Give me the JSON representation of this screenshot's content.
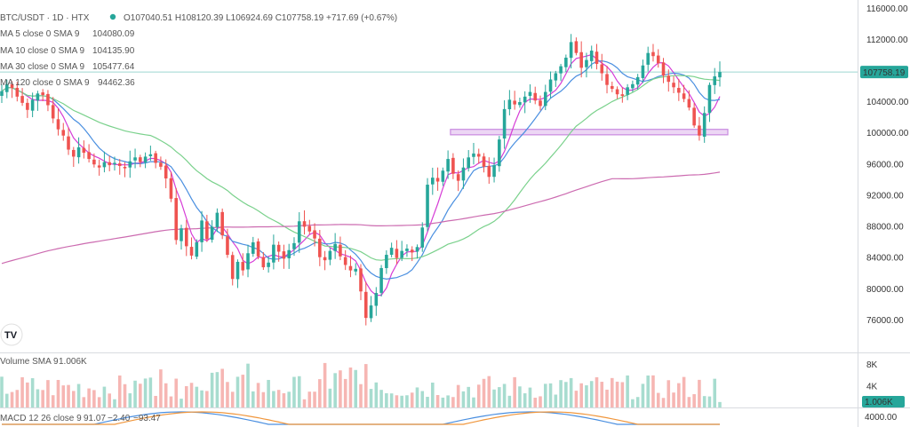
{
  "colors": {
    "up": "#26a69a",
    "down": "#ef5350",
    "up_vol": "#a7dccf",
    "down_vol": "#f6b6b3",
    "ma5": "#d63cd6",
    "ma10": "#4a8fe0",
    "ma30": "#7ad18c",
    "ma120": "#cc6bb0",
    "zone": "#c98ae0",
    "macd_line": "#4a8fe0",
    "signal_line": "#f0963c",
    "price_tag_bg": "#26a69a"
  },
  "header": {
    "symbol": "BTC/USDT · 1D · HTX",
    "ohlc": "O107040.51 H108120.39 L106924.69 C107758.19 +717.69 (+0.67%)",
    "ma_rows": [
      {
        "label": "MA 5 close 0 SMA 9",
        "value": "104080.09",
        "color_key": "ma5"
      },
      {
        "label": "MA 10 close 0 SMA 9",
        "value": "104135.90",
        "color_key": "ma10"
      },
      {
        "label": "MA 30 close 0 SMA 9",
        "value": "105477.64",
        "color_key": "ma30"
      },
      {
        "label": "MA 120 close 0 SMA 9",
        "value": "94462.36",
        "color_key": "ma120"
      }
    ],
    "volume_label": "Volume SMA 9",
    "volume_value": "1.006K",
    "macd_label": "MACD 12 26 close 9",
    "macd_values": [
      "91.07",
      "−2.40",
      "−93.47"
    ],
    "logo_text": "TV"
  },
  "chart_data": {
    "type": "candlestick",
    "title": "BTC/USDT · 1D · HTX",
    "ylim": [
      72000,
      117000
    ],
    "y_ticks": [
      {
        "value": 116000,
        "label": "116000.00"
      },
      {
        "value": 112000,
        "label": "112000.00"
      },
      {
        "value": 108000,
        "label": "108000.00"
      },
      {
        "value": 104000,
        "label": "104000.00"
      },
      {
        "value": 100000,
        "label": "100000.00"
      },
      {
        "value": 96000,
        "label": "96000.00"
      },
      {
        "value": 92000,
        "label": "92000.00"
      },
      {
        "value": 88000,
        "label": "88000.00"
      },
      {
        "value": 84000,
        "label": "84000.00"
      },
      {
        "value": 80000,
        "label": "80000.00"
      },
      {
        "value": 76000,
        "label": "76000.00"
      }
    ],
    "last_price": {
      "value": 107758.19,
      "label": "107758.19"
    },
    "support_zone": {
      "low": 99700,
      "high": 100400,
      "from_index": 88,
      "to_index": 140
    },
    "volume": {
      "ylim": [
        0,
        10000
      ],
      "ticks": [
        {
          "value": 8000,
          "label": "8K"
        },
        {
          "value": 4000,
          "label": "4K"
        }
      ],
      "last": {
        "value": 1006,
        "label": "1.006K"
      }
    },
    "macd_axis": {
      "label": "4000.00"
    },
    "closes": [
      105300,
      106200,
      105700,
      104600,
      103800,
      102900,
      104200,
      105000,
      104800,
      103500,
      101800,
      100400,
      99600,
      97800,
      96900,
      98100,
      97400,
      96600,
      95900,
      95500,
      96200,
      95800,
      96100,
      95700,
      95400,
      96300,
      96800,
      96200,
      96900,
      97200,
      96100,
      95600,
      94100,
      91500,
      86200,
      87700,
      85400,
      84200,
      85900,
      88700,
      86300,
      87900,
      89700,
      86800,
      84300,
      81200,
      83400,
      82300,
      84500,
      85900,
      84100,
      82700,
      83300,
      85600,
      84700,
      83800,
      84900,
      85800,
      88600,
      87900,
      87300,
      86400,
      84000,
      83600,
      84800,
      85700,
      84100,
      83000,
      82300,
      82500,
      79600,
      76200,
      77800,
      79400,
      82600,
      84300,
      85200,
      83900,
      84800,
      85100,
      84600,
      85300,
      87800,
      93300,
      94200,
      93700,
      95100,
      96600,
      94700,
      93800,
      95500,
      96800,
      97300,
      96900,
      95600,
      94300,
      95800,
      99100,
      103000,
      104200,
      103600,
      103900,
      104600,
      105200,
      104100,
      103400,
      105200,
      106800,
      107600,
      108500,
      109600,
      111600,
      110200,
      108300,
      109300,
      110500,
      108800,
      107600,
      106100,
      105600,
      104900,
      104700,
      105800,
      106200,
      107100,
      108600,
      110200,
      109800,
      108900,
      107300,
      106500,
      105800,
      105100,
      104300,
      103200,
      100900,
      99600,
      102500,
      106100,
      107200,
      107758
    ]
  }
}
